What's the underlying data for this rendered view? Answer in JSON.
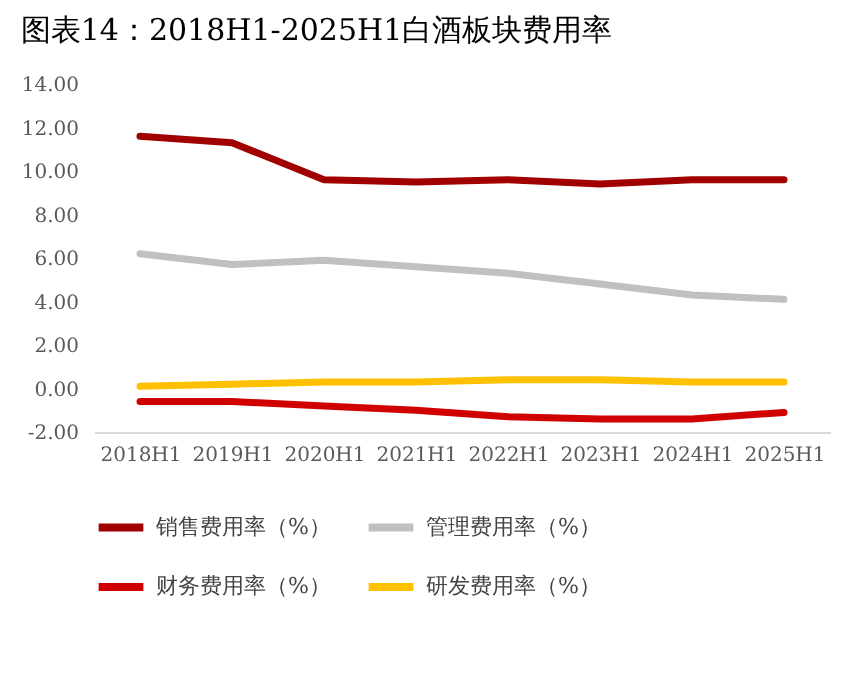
{
  "chart_data": {
    "type": "line",
    "title": "图表14：2018H1-2025H1白酒板块费用率",
    "categories": [
      "2018H1",
      "2019H1",
      "2020H1",
      "2021H1",
      "2022H1",
      "2023H1",
      "2024H1",
      "2025H1"
    ],
    "series": [
      {
        "name": "销售费用率（%）",
        "color": "#a00000",
        "values": [
          11.6,
          11.3,
          9.6,
          9.5,
          9.6,
          9.4,
          9.6,
          9.6
        ]
      },
      {
        "name": "管理费用率（%）",
        "color": "#c0c0c0",
        "values": [
          6.2,
          5.7,
          5.9,
          5.6,
          5.3,
          4.8,
          4.3,
          4.1
        ]
      },
      {
        "name": "财务费用率（%）",
        "color": "#d00000",
        "values": [
          -0.6,
          -0.6,
          -0.8,
          -1.0,
          -1.3,
          -1.4,
          -1.4,
          -1.1
        ]
      },
      {
        "name": "研发费用率（%）",
        "color": "#ffc000",
        "values": [
          0.1,
          0.2,
          0.3,
          0.3,
          0.4,
          0.4,
          0.3,
          0.3
        ]
      }
    ],
    "ylim": [
      -2,
      14
    ],
    "yticks": [
      {
        "value": -2,
        "label": "-2.00"
      },
      {
        "value": 0,
        "label": "0.00"
      },
      {
        "value": 2,
        "label": "2.00"
      },
      {
        "value": 4,
        "label": "4.00"
      },
      {
        "value": 6,
        "label": "6.00"
      },
      {
        "value": 8,
        "label": "8.00"
      },
      {
        "value": 10,
        "label": "10.00"
      },
      {
        "value": 12,
        "label": "12.00"
      },
      {
        "value": 14,
        "label": "14.00"
      }
    ],
    "grid": false,
    "legend": "bottom",
    "marker": "none",
    "line_style": "solid"
  }
}
